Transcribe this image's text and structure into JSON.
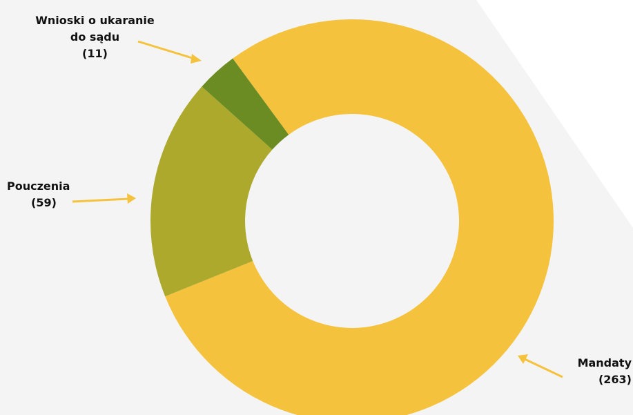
{
  "chart_data": {
    "type": "donut",
    "categories": [
      "Mandaty",
      "Pouczenia",
      "Wnioski o ukaranie do sądu"
    ],
    "values": [
      263,
      59,
      11
    ],
    "value_labels": [
      "(263)",
      "(59)",
      "(11)"
    ],
    "colors": [
      "#f4c23c",
      "#aca92c",
      "#6b8c23"
    ]
  }
}
